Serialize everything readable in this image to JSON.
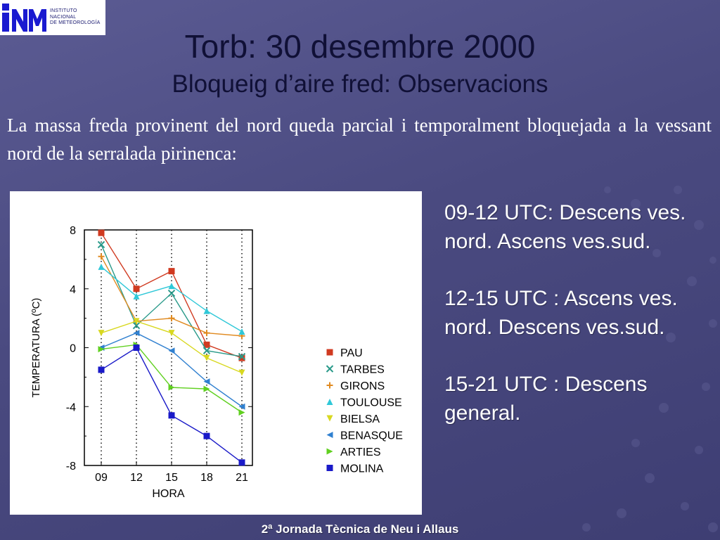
{
  "logo": {
    "initials": "INM",
    "line1": "INSTITUTO",
    "line2": "NACIONAL",
    "line3": "DE METEOROLOGÍA"
  },
  "slide": {
    "title": "Torb: 30 desembre 2000",
    "subtitle": "Bloqueig d’aire fred: Observacions",
    "intro": "La massa freda provinent del nord queda parcial i temporalment bloquejada a la vessant nord de la serralada pirinenca:",
    "notes": [
      "09-12 UTC: Descens ves. nord. Ascens ves.sud.",
      "12-15 UTC : Ascens ves. nord. Descens ves.sud.",
      "15-21 UTC : Descens general."
    ],
    "footer": "2ª Jornada Tècnica de Neu i Allaus"
  },
  "colors": {
    "title": "#101036",
    "background": "#4a4a80",
    "text": "#ffffff"
  },
  "chart_data": {
    "type": "line",
    "title": "",
    "xlabel": "HORA",
    "ylabel": "TEMPERATURA (ºC)",
    "categories": [
      "09",
      "12",
      "15",
      "18",
      "21"
    ],
    "ylim": [
      -8,
      8
    ],
    "yticks": [
      "8",
      "4",
      "0",
      "-4",
      "-8"
    ],
    "grid": "vertical dotted lines at each hour",
    "legend_position": "right",
    "series": [
      {
        "name": "PAU",
        "marker": "square",
        "color": "#d03a20",
        "values": [
          7.8,
          4.0,
          5.2,
          0.2,
          -0.7
        ]
      },
      {
        "name": "TARBES",
        "marker": "x",
        "color": "#2a9a8a",
        "values": [
          7.0,
          1.5,
          3.7,
          -0.2,
          -0.6
        ]
      },
      {
        "name": "GIRONS",
        "marker": "plus",
        "color": "#e08a20",
        "values": [
          6.2,
          1.8,
          2.0,
          1.0,
          0.8
        ]
      },
      {
        "name": "TOULOUSE",
        "marker": "triangle-up",
        "color": "#30c8d8",
        "values": [
          5.5,
          3.5,
          4.2,
          2.5,
          1.1
        ]
      },
      {
        "name": "BIELSA",
        "marker": "triangle-down",
        "color": "#d8d820",
        "values": [
          1.0,
          1.8,
          1.0,
          -0.7,
          -1.7
        ]
      },
      {
        "name": "BENASQUE",
        "marker": "triangle-left",
        "color": "#3080d0",
        "values": [
          0.0,
          1.0,
          -0.2,
          -2.3,
          -4.0
        ]
      },
      {
        "name": "ARTIES",
        "marker": "triangle-right",
        "color": "#60d020",
        "values": [
          -0.1,
          0.2,
          -2.7,
          -2.8,
          -4.4
        ]
      },
      {
        "name": "MOLINA",
        "marker": "square",
        "color": "#1a1ac8",
        "values": [
          -1.5,
          0.0,
          -4.6,
          -6.0,
          -7.8
        ]
      }
    ]
  }
}
